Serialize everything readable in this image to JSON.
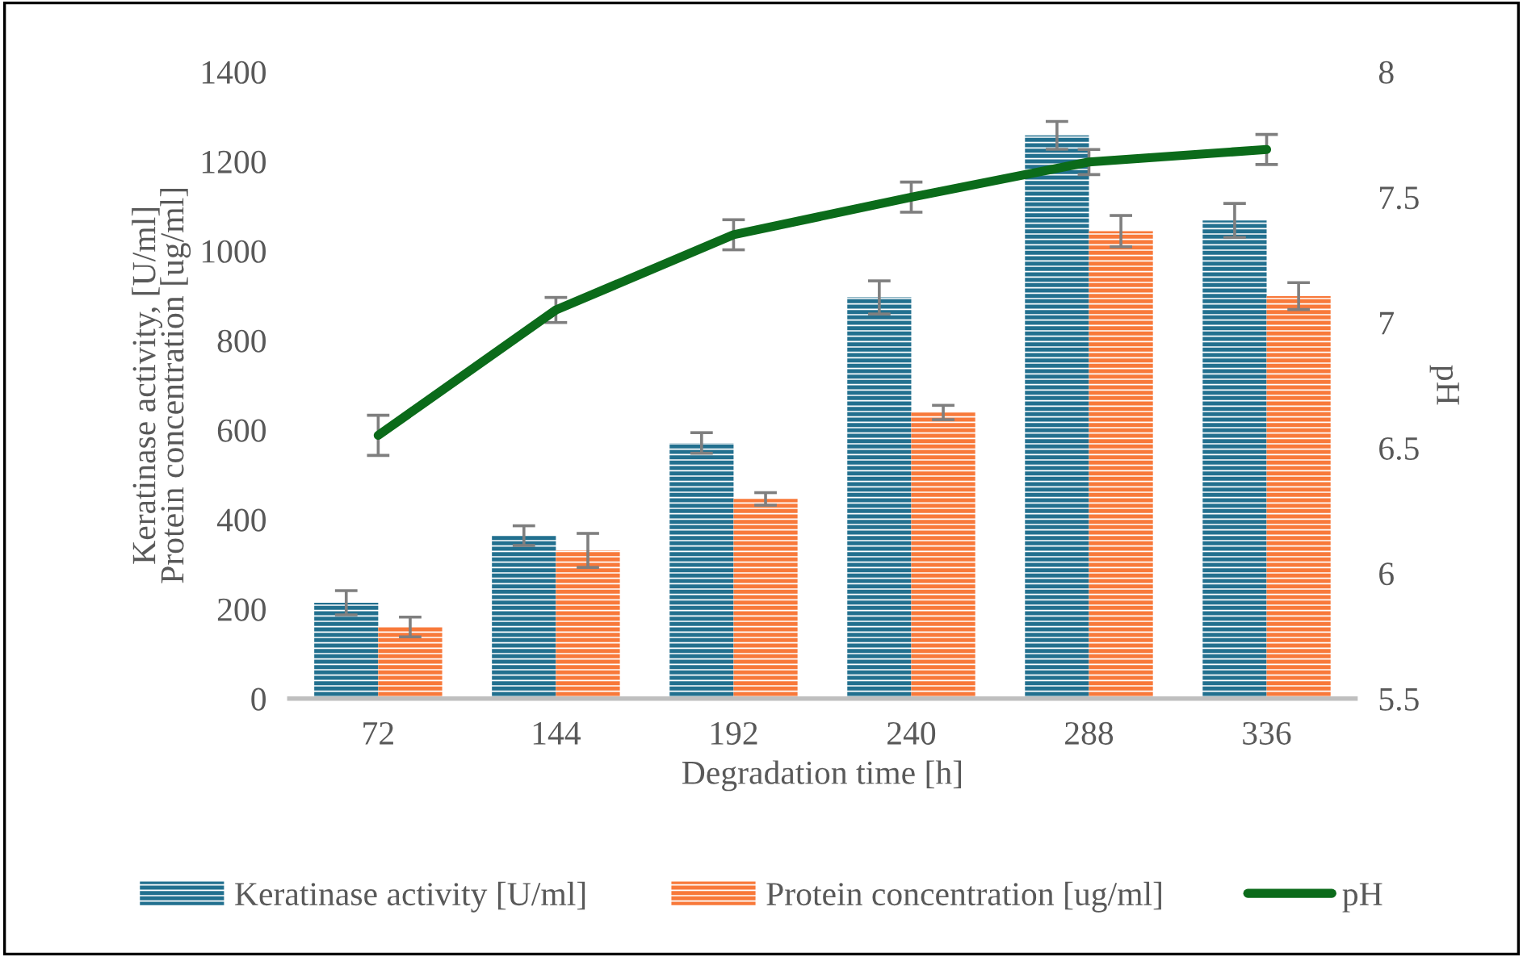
{
  "chart_data": {
    "type": "bar",
    "xlabel": "Degradation time [h]",
    "ylabel": "Keratinase activity, [U/ml]\nProtein concentration [ug/ml]",
    "y2label": "pH",
    "categories": [
      "72",
      "144",
      "192",
      "240",
      "288",
      "336"
    ],
    "series": [
      {
        "name": "Keratinase activity [U/ml]",
        "color": "#22708f",
        "values": [
          214,
          364,
          571,
          896,
          1258,
          1068
        ],
        "errors": [
          27,
          22,
          23,
          37,
          31,
          38
        ]
      },
      {
        "name": "Protein concentration [ug/ml]",
        "color": "#f8793a",
        "values": [
          160,
          331,
          446,
          639,
          1044,
          899
        ],
        "errors": [
          22,
          38,
          14,
          16,
          35,
          30
        ]
      },
      {
        "name": "pH",
        "type": "line",
        "axis": "y2",
        "color": "#0b6b1a",
        "values": [
          6.55,
          7.05,
          7.35,
          7.5,
          7.64,
          7.69
        ],
        "errors": [
          0.08,
          0.05,
          0.06,
          0.06,
          0.05,
          0.06
        ]
      }
    ],
    "ylim": [
      0,
      1400
    ],
    "yticks": [
      0,
      200,
      400,
      600,
      800,
      1000,
      1200,
      1400
    ],
    "y2lim": [
      5.5,
      8
    ],
    "y2ticks": [
      5.5,
      6,
      6.5,
      7,
      7.5,
      8
    ],
    "grid": false,
    "legend": "bottom",
    "marker": "none",
    "line_style": "solid"
  }
}
